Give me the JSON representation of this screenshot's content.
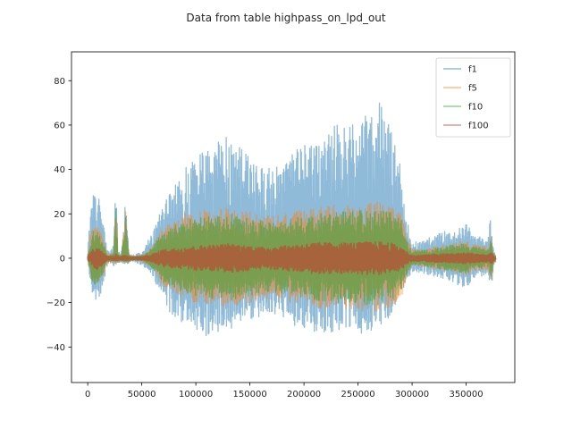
{
  "chart_data": {
    "type": "line",
    "title": "Data from table highpass_on_lpd_out",
    "xlabel": "",
    "ylabel": "",
    "xlim": [
      -15000,
      395000
    ],
    "ylim": [
      -56,
      93
    ],
    "xticks": [
      0,
      50000,
      100000,
      150000,
      200000,
      250000,
      300000,
      350000
    ],
    "xtick_labels": [
      "0",
      "50000",
      "100000",
      "150000",
      "200000",
      "250000",
      "300000",
      "350000"
    ],
    "yticks": [
      -40,
      -20,
      0,
      20,
      40,
      60,
      80
    ],
    "ytick_labels": [
      "−40",
      "−20",
      "0",
      "20",
      "40",
      "60",
      "80"
    ],
    "grid": false,
    "legend_position": "top-right",
    "series": [
      {
        "name": "f1",
        "color": "#1f77b4",
        "alpha": 0.5,
        "envelope": {
          "x": [
            0,
            3000,
            6000,
            9000,
            12000,
            15000,
            18000,
            21000,
            24000,
            26000,
            28000,
            31000,
            35000,
            38000,
            40000,
            42000,
            45000,
            50000,
            55000,
            60000,
            65000,
            70000,
            75000,
            80000,
            90000,
            100000,
            110000,
            120000,
            130000,
            140000,
            150000,
            160000,
            170000,
            180000,
            190000,
            200000,
            210000,
            220000,
            230000,
            240000,
            250000,
            260000,
            270000,
            280000,
            290000,
            295000,
            300000,
            310000,
            320000,
            330000,
            340000,
            345000,
            350000,
            355000,
            360000,
            365000,
            370000,
            373000,
            375000,
            377000
          ],
          "upper": [
            2,
            28,
            30,
            29,
            26,
            15,
            4,
            3,
            7,
            39,
            3,
            2,
            30,
            3,
            1.5,
            1.5,
            2,
            3,
            7,
            13,
            18,
            24,
            28,
            32,
            40,
            48,
            50,
            52,
            55,
            50,
            45,
            42,
            40,
            42,
            47,
            52,
            55,
            57,
            60,
            58,
            62,
            65,
            70,
            58,
            40,
            18,
            7,
            8,
            10,
            12,
            15,
            14,
            16,
            12,
            9,
            10,
            8,
            21,
            5,
            2
          ],
          "lower": [
            -2,
            -16,
            -20,
            -18,
            -16,
            -10,
            -3,
            -2,
            -4,
            -3,
            -2,
            -2,
            -3,
            -2,
            -1.5,
            -1.5,
            -2,
            -3,
            -5,
            -8,
            -14,
            -20,
            -24,
            -26,
            -30,
            -33,
            -35,
            -33,
            -32,
            -30,
            -28,
            -26,
            -25,
            -27,
            -30,
            -32,
            -33,
            -35,
            -33,
            -32,
            -34,
            -33,
            -30,
            -26,
            -15,
            -10,
            -6,
            -7,
            -8,
            -10,
            -12,
            -12,
            -14,
            -10,
            -8,
            -8,
            -7,
            -14,
            -4,
            -2
          ]
        }
      },
      {
        "name": "f5",
        "color": "#ff7f0e",
        "alpha": 0.5,
        "envelope": {
          "x": [
            0,
            3000,
            6000,
            9000,
            12000,
            15000,
            18000,
            21000,
            24000,
            26000,
            28000,
            31000,
            35000,
            38000,
            40000,
            45000,
            50000,
            55000,
            60000,
            65000,
            70000,
            80000,
            90000,
            100000,
            110000,
            120000,
            130000,
            140000,
            150000,
            160000,
            170000,
            180000,
            190000,
            200000,
            210000,
            220000,
            230000,
            240000,
            250000,
            260000,
            270000,
            280000,
            290000,
            295000,
            300000,
            310000,
            320000,
            330000,
            340000,
            350000,
            360000,
            370000,
            373000,
            375000,
            377000
          ],
          "upper": [
            1.5,
            12,
            15,
            14,
            12,
            7,
            2,
            2,
            3,
            31,
            2,
            1.5,
            23,
            2,
            1,
            1,
            1.5,
            3,
            6,
            10,
            14,
            17,
            20,
            21,
            22,
            22,
            23,
            22,
            21,
            20,
            19,
            20,
            21,
            22,
            23,
            24,
            24,
            24,
            25,
            25,
            26,
            24,
            20,
            10,
            4,
            4,
            5,
            6,
            7,
            8,
            6,
            5,
            12,
            3,
            1.5
          ],
          "lower": [
            -1.5,
            -10,
            -13,
            -12,
            -10,
            -6,
            -2,
            -2,
            -2,
            -2,
            -2,
            -1.5,
            -2,
            -2,
            -1,
            -1,
            -1.5,
            -3,
            -5,
            -9,
            -13,
            -16,
            -19,
            -20,
            -21,
            -21,
            -22,
            -21,
            -20,
            -19,
            -18,
            -19,
            -20,
            -21,
            -22,
            -23,
            -23,
            -23,
            -24,
            -24,
            -24,
            -22,
            -18,
            -8,
            -3,
            -4,
            -5,
            -6,
            -7,
            -8,
            -6,
            -5,
            -10,
            -3,
            -1.5
          ]
        }
      },
      {
        "name": "f10",
        "color": "#2ca02c",
        "alpha": 0.5,
        "envelope": {
          "x": [
            0,
            3000,
            6000,
            9000,
            12000,
            15000,
            18000,
            21000,
            24000,
            26000,
            28000,
            31000,
            35000,
            38000,
            40000,
            45000,
            50000,
            55000,
            60000,
            65000,
            70000,
            80000,
            90000,
            100000,
            110000,
            120000,
            130000,
            140000,
            150000,
            160000,
            170000,
            180000,
            190000,
            200000,
            210000,
            220000,
            230000,
            240000,
            250000,
            260000,
            270000,
            280000,
            290000,
            295000,
            300000,
            310000,
            320000,
            330000,
            340000,
            350000,
            360000,
            370000,
            373000,
            375000,
            377000
          ],
          "upper": [
            1.2,
            10,
            13,
            12,
            10,
            6,
            1.5,
            1.5,
            2,
            26,
            1.5,
            1.2,
            22,
            1.5,
            1,
            1,
            1.2,
            2.5,
            5,
            9,
            12,
            15,
            17,
            18,
            19,
            19,
            20,
            19,
            18,
            17,
            16,
            17,
            18,
            19,
            20,
            21,
            21,
            21,
            22,
            22,
            22,
            21,
            17,
            8,
            3,
            3.5,
            4.5,
            5.5,
            6,
            7,
            5,
            4,
            10,
            2.5,
            1.2
          ],
          "lower": [
            -1.2,
            -9,
            -12,
            -11,
            -9,
            -5,
            -1.5,
            -1.5,
            -1.5,
            -1.5,
            -1.5,
            -1.2,
            -1.5,
            -1.5,
            -1,
            -1,
            -1.2,
            -2.5,
            -4.5,
            -8,
            -11,
            -14,
            -16,
            -17,
            -18,
            -18,
            -19,
            -18,
            -17,
            -16,
            -15,
            -16,
            -17,
            -18,
            -19,
            -20,
            -20,
            -20,
            -21,
            -21,
            -21,
            -19,
            -15,
            -7,
            -3,
            -3.5,
            -4.5,
            -5.5,
            -6,
            -7,
            -5,
            -4,
            -9,
            -2.5,
            -1.2
          ]
        }
      },
      {
        "name": "f100",
        "color": "#d62728",
        "alpha": 0.5,
        "envelope": {
          "x": [
            0,
            3000,
            6000,
            9000,
            12000,
            15000,
            18000,
            21000,
            24000,
            26000,
            28000,
            31000,
            35000,
            38000,
            40000,
            45000,
            50000,
            55000,
            60000,
            65000,
            70000,
            80000,
            90000,
            100000,
            110000,
            120000,
            130000,
            140000,
            150000,
            160000,
            170000,
            180000,
            190000,
            200000,
            210000,
            220000,
            230000,
            240000,
            250000,
            260000,
            270000,
            280000,
            290000,
            295000,
            300000,
            310000,
            320000,
            330000,
            340000,
            350000,
            360000,
            370000,
            373000,
            375000,
            377000
          ],
          "upper": [
            0.8,
            3,
            5,
            5,
            4,
            2.5,
            0.8,
            0.8,
            1,
            2,
            0.8,
            0.8,
            1.5,
            0.8,
            0.6,
            0.6,
            0.8,
            1.2,
            2,
            3,
            4,
            4.5,
            5,
            5.5,
            6,
            6,
            6.5,
            6,
            5.5,
            5,
            5,
            5.5,
            6,
            6.5,
            7,
            7,
            7,
            7,
            7,
            7.5,
            7.5,
            7,
            5,
            3,
            1.2,
            1.5,
            1.8,
            2,
            2.2,
            2.5,
            2,
            1.5,
            3,
            1,
            0.6
          ],
          "lower": [
            -0.8,
            -3,
            -5,
            -5,
            -4,
            -2.5,
            -0.8,
            -0.8,
            -1,
            -1,
            -0.8,
            -0.8,
            -1,
            -0.8,
            -0.6,
            -0.6,
            -0.8,
            -1.2,
            -2,
            -3,
            -4,
            -4.5,
            -5,
            -5.5,
            -6,
            -6,
            -6.5,
            -6,
            -5.5,
            -5,
            -5,
            -5.5,
            -6,
            -6.5,
            -7,
            -7,
            -7,
            -7,
            -7,
            -7.5,
            -7.5,
            -7,
            -5,
            -3,
            -1.2,
            -1.5,
            -1.8,
            -2,
            -2.2,
            -2.5,
            -2,
            -1.5,
            -3,
            -1,
            -0.6
          ]
        }
      }
    ]
  }
}
